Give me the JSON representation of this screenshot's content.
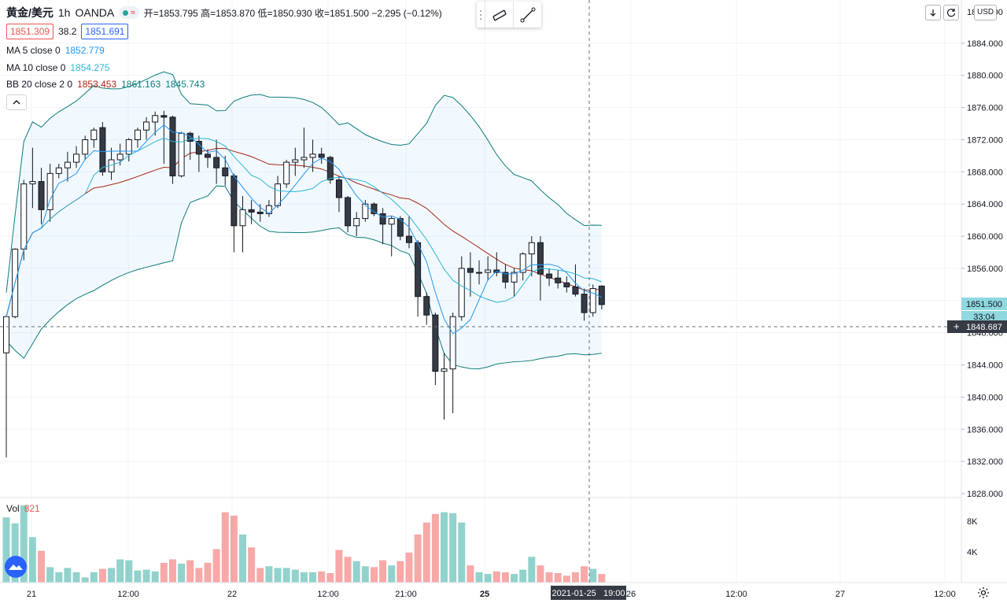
{
  "header": {
    "symbol": "黄金/美元",
    "interval": "1h",
    "exchange": "OANDA",
    "status_glyph": "≈",
    "ohlc_text": "开=1853.795 高=1853.870 低=1850.930 收=1851.500 −2.295 (−0.12%)",
    "bid": "1851.309",
    "spread": "38.2",
    "ask": "1851.691"
  },
  "indicators": {
    "ma5": {
      "label": "MA 5 close 0",
      "value": "1852.779",
      "color": "#2196f3"
    },
    "ma10": {
      "label": "MA 10 close 0",
      "value": "1854.275",
      "color": "#29b6d8"
    },
    "bb": {
      "label": "BB 20 close 2 0",
      "basis": "1853.453",
      "upper": "1861.163",
      "lower": "1845.743",
      "basis_color": "#a52714",
      "band_color": "#0e7c7b"
    }
  },
  "volume": {
    "label": "Vol",
    "value": "821",
    "axis_labels": [
      "8K",
      "4K"
    ]
  },
  "price_axis": {
    "labels": [
      "1884.000",
      "1880.000",
      "1876.000",
      "1872.000",
      "1868.000",
      "1864.000",
      "1860.000",
      "1856.000",
      "1852.000",
      "1848.000",
      "1844.000",
      "1840.000",
      "1836.000",
      "1832.000",
      "1828.000"
    ],
    "top_partial": "1888.000",
    "last_price": "1851.500",
    "countdown": "33:04",
    "crosshair_price": "1848.687"
  },
  "time_axis": {
    "labels": [
      "21",
      "12:00",
      "22",
      "12:00",
      "21:00",
      "25",
      "26",
      "12:00",
      "27",
      "12:00"
    ],
    "crosshair_time": "2021-01-25   19:00"
  },
  "toolbar": {
    "currency": "USD"
  },
  "icons": {
    "gear": "gear-icon",
    "logo": "tradingview-logo-icon",
    "collapse": "chevron-up-icon"
  },
  "chart_data": {
    "type": "candlestick",
    "y_range": [
      1828,
      1888
    ],
    "x_labels": [
      "21",
      "12:00",
      "22",
      "12:00",
      "21:00",
      "25",
      "26",
      "12:00",
      "27",
      "12:00"
    ],
    "candles": [
      [
        1845.5,
        1850.2,
        1832.5,
        1850.0,
        760
      ],
      [
        1850.0,
        1858.5,
        1849.8,
        1858.4,
        690
      ],
      [
        1858.4,
        1867.0,
        1857.0,
        1866.5,
        900
      ],
      [
        1866.5,
        1871.0,
        1863.5,
        1866.8,
        530
      ],
      [
        1866.8,
        1868.5,
        1861.5,
        1863.3,
        370
      ],
      [
        1863.3,
        1869.0,
        1861.8,
        1867.8,
        180
      ],
      [
        1867.8,
        1869.0,
        1867.2,
        1868.5,
        120
      ],
      [
        1868.5,
        1870.5,
        1866.8,
        1869.2,
        170
      ],
      [
        1869.2,
        1871.2,
        1868.5,
        1870.2,
        120
      ],
      [
        1870.2,
        1872.5,
        1869.5,
        1872.0,
        60
      ],
      [
        1872.0,
        1873.5,
        1871.0,
        1873.2,
        120
      ],
      [
        1873.5,
        1874.2,
        1867.5,
        1868.0,
        160
      ],
      [
        1868.0,
        1871.0,
        1867.0,
        1869.5,
        170
      ],
      [
        1869.5,
        1871.5,
        1868.8,
        1870.2,
        270
      ],
      [
        1870.2,
        1872.2,
        1869.3,
        1872.0,
        260
      ],
      [
        1872.0,
        1873.5,
        1871.0,
        1873.2,
        140
      ],
      [
        1873.2,
        1874.8,
        1872.0,
        1874.2,
        150
      ],
      [
        1874.2,
        1875.5,
        1872.5,
        1875.0,
        130
      ],
      [
        1875.0,
        1875.6,
        1869.0,
        1874.8,
        230
      ],
      [
        1874.8,
        1875.0,
        1866.5,
        1867.5,
        270
      ],
      [
        1867.5,
        1873.0,
        1867.3,
        1872.8,
        220
      ],
      [
        1872.8,
        1873.0,
        1869.5,
        1871.8,
        260
      ],
      [
        1871.8,
        1872.5,
        1868.0,
        1870.2,
        170
      ],
      [
        1870.2,
        1870.8,
        1868.5,
        1869.8,
        230
      ],
      [
        1869.8,
        1872.0,
        1866.5,
        1868.5,
        390
      ],
      [
        1868.5,
        1870.0,
        1866.3,
        1867.5,
        820
      ],
      [
        1867.5,
        1867.8,
        1858.0,
        1861.3,
        780
      ],
      [
        1861.3,
        1865.0,
        1858.0,
        1863.3,
        560
      ],
      [
        1863.3,
        1864.5,
        1861.5,
        1863.0,
        410
      ],
      [
        1863.0,
        1864.0,
        1861.8,
        1862.8,
        170
      ],
      [
        1862.8,
        1864.5,
        1862.4,
        1863.8,
        190
      ],
      [
        1863.8,
        1867.5,
        1863.5,
        1866.5,
        170
      ],
      [
        1866.5,
        1869.5,
        1866.0,
        1869.2,
        170
      ],
      [
        1869.2,
        1871.0,
        1867.5,
        1869.5,
        150
      ],
      [
        1869.5,
        1873.5,
        1868.5,
        1869.8,
        120
      ],
      [
        1869.8,
        1872.0,
        1868.0,
        1870.2,
        120
      ],
      [
        1870.2,
        1871.0,
        1869.0,
        1869.8,
        130
      ],
      [
        1869.8,
        1870.0,
        1866.5,
        1867.0,
        110
      ],
      [
        1867.0,
        1867.5,
        1863.0,
        1864.8,
        380
      ],
      [
        1864.8,
        1865.0,
        1860.5,
        1861.3,
        300
      ],
      [
        1861.3,
        1863.0,
        1860.0,
        1862.2,
        250
      ],
      [
        1862.2,
        1864.5,
        1861.8,
        1864.0,
        190
      ],
      [
        1864.0,
        1864.2,
        1862.5,
        1862.8,
        180
      ],
      [
        1862.8,
        1863.5,
        1859.0,
        1861.5,
        260
      ],
      [
        1861.5,
        1862.5,
        1857.5,
        1862.2,
        200
      ],
      [
        1862.2,
        1862.5,
        1859.5,
        1860.0,
        250
      ],
      [
        1860.0,
        1862.5,
        1858.5,
        1859.2,
        350
      ],
      [
        1859.2,
        1859.5,
        1850.0,
        1852.5,
        560
      ],
      [
        1852.5,
        1853.0,
        1849.0,
        1850.2,
        700
      ],
      [
        1850.2,
        1850.5,
        1841.5,
        1843.2,
        800
      ],
      [
        1843.2,
        1845.5,
        1837.2,
        1843.5,
        820
      ],
      [
        1843.5,
        1850.5,
        1838.0,
        1850.0,
        810
      ],
      [
        1850.0,
        1857.5,
        1849.5,
        1856.0,
        700
      ],
      [
        1856.0,
        1858.0,
        1852.5,
        1855.5,
        200
      ],
      [
        1855.5,
        1857.0,
        1854.0,
        1855.5,
        120
      ],
      [
        1855.5,
        1857.5,
        1854.5,
        1855.8,
        100
      ],
      [
        1855.8,
        1858.0,
        1855.0,
        1855.5,
        130
      ],
      [
        1855.5,
        1856.5,
        1853.5,
        1854.3,
        120
      ],
      [
        1854.3,
        1856.0,
        1852.5,
        1855.5,
        100
      ],
      [
        1855.5,
        1858.0,
        1854.5,
        1857.8,
        150
      ],
      [
        1857.8,
        1860.0,
        1855.0,
        1859.2,
        300
      ],
      [
        1859.2,
        1860.0,
        1852.0,
        1855.3,
        200
      ],
      [
        1855.3,
        1856.0,
        1853.8,
        1854.8,
        120
      ],
      [
        1854.8,
        1855.8,
        1853.5,
        1854.2,
        110
      ],
      [
        1854.2,
        1855.0,
        1853.0,
        1853.7,
        80
      ],
      [
        1853.7,
        1856.5,
        1852.5,
        1852.8,
        120
      ],
      [
        1852.8,
        1853.5,
        1849.5,
        1850.5,
        190
      ],
      [
        1850.5,
        1854.0,
        1850.0,
        1853.5,
        160
      ],
      [
        1853.8,
        1853.9,
        1850.9,
        1851.5,
        100
      ]
    ]
  }
}
